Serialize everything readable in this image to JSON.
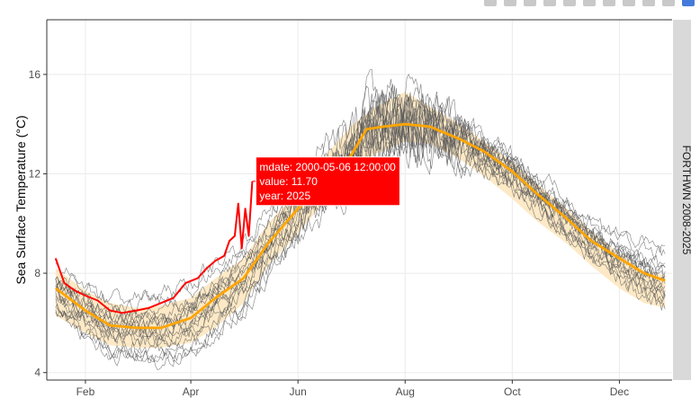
{
  "toolbar": {
    "icons": [
      "camera-icon",
      "zoom-icon",
      "pan-icon",
      "zoom-in-icon",
      "zoom-out-icon",
      "autoscale-icon",
      "reset-axes-icon",
      "spike-lines-icon",
      "hover-closest-icon",
      "hover-compare-icon",
      "plotly-logo-icon"
    ],
    "colors": {
      "icon": "#c9c9c9",
      "logo": "#447adb"
    }
  },
  "chart_data": {
    "type": "line",
    "ylabel": "Sea Surface Temperature (°C)",
    "facet_label": "FORTHWN 2008-2025",
    "x_ticks": [
      "Feb",
      "Apr",
      "Jun",
      "Aug",
      "Oct",
      "Dec"
    ],
    "x_tick_dates": [
      "2000-02-01",
      "2000-04-01",
      "2000-06-01",
      "2000-08-01",
      "2000-10-01",
      "2000-12-01"
    ],
    "xlim": [
      "2000-01-10",
      "2000-12-31"
    ],
    "y_ticks": [
      4,
      8,
      12,
      16
    ],
    "ylim": [
      3.7,
      18.2
    ],
    "grid": true,
    "colors": {
      "panel_background": "#ffffff",
      "grid": "#ebebeb",
      "history_lines": "#555555",
      "band": "#fde7c0",
      "mean_line": "#ffa500",
      "current_year": "#ff0000",
      "strip": "#d9d9d9",
      "tooltip_bg": "#ff0000"
    },
    "band": {
      "x": [
        "2000-01-15",
        "2000-02-01",
        "2000-02-15",
        "2000-03-01",
        "2000-03-15",
        "2000-04-01",
        "2000-04-15",
        "2000-05-01",
        "2000-05-15",
        "2000-06-01",
        "2000-06-15",
        "2000-07-01",
        "2000-07-15",
        "2000-08-01",
        "2000-08-15",
        "2000-09-01",
        "2000-09-15",
        "2000-10-01",
        "2000-10-15",
        "2000-11-01",
        "2000-11-15",
        "2000-12-01",
        "2000-12-15",
        "2000-12-27"
      ],
      "lower": [
        6.3,
        5.6,
        5.1,
        5.0,
        5.0,
        5.2,
        5.8,
        6.8,
        8.3,
        9.6,
        10.8,
        11.8,
        12.8,
        13.3,
        13.2,
        12.6,
        11.9,
        11.0,
        10.1,
        9.2,
        8.3,
        7.4,
        6.8,
        6.6
      ],
      "upper": [
        8.2,
        7.3,
        6.8,
        6.6,
        6.7,
        7.0,
        7.8,
        8.6,
        10.0,
        11.3,
        12.6,
        13.9,
        14.7,
        15.3,
        14.7,
        14.0,
        13.3,
        12.5,
        11.6,
        10.6,
        9.7,
        8.8,
        8.1,
        7.9
      ]
    },
    "series": [
      {
        "name": "mean",
        "x": [
          "2000-01-15",
          "2000-02-01",
          "2000-02-15",
          "2000-03-01",
          "2000-03-15",
          "2000-04-01",
          "2000-04-15",
          "2000-05-01",
          "2000-05-15",
          "2000-06-01",
          "2000-06-15",
          "2000-07-01",
          "2000-07-10",
          "2000-07-20",
          "2000-08-01",
          "2000-08-15",
          "2000-09-01",
          "2000-09-15",
          "2000-10-01",
          "2000-10-15",
          "2000-11-01",
          "2000-11-15",
          "2000-12-01",
          "2000-12-15",
          "2000-12-27"
        ],
        "y": [
          7.4,
          6.5,
          5.9,
          5.8,
          5.8,
          6.2,
          7.0,
          7.8,
          9.2,
          10.6,
          11.7,
          12.7,
          13.8,
          13.9,
          14.0,
          13.9,
          13.4,
          12.9,
          12.1,
          11.2,
          10.2,
          9.3,
          8.6,
          8.0,
          7.7
        ]
      },
      {
        "name": "2025",
        "x": [
          "2000-01-15",
          "2000-01-20",
          "2000-01-26",
          "2000-02-01",
          "2000-02-08",
          "2000-02-15",
          "2000-02-22",
          "2000-03-01",
          "2000-03-08",
          "2000-03-15",
          "2000-03-22",
          "2000-03-29",
          "2000-04-05",
          "2000-04-10",
          "2000-04-15",
          "2000-04-20",
          "2000-04-23",
          "2000-04-26",
          "2000-04-28",
          "2000-04-30",
          "2000-05-02",
          "2000-05-04",
          "2000-05-06"
        ],
        "y": [
          8.6,
          7.6,
          7.3,
          7.1,
          6.9,
          6.5,
          6.4,
          6.5,
          6.6,
          6.8,
          7.0,
          7.6,
          7.8,
          8.2,
          8.5,
          8.7,
          9.3,
          9.5,
          10.8,
          9.0,
          10.6,
          9.5,
          11.7
        ]
      }
    ],
    "history_line_count": 17,
    "tooltip": {
      "lines": [
        "mdate: 2000-05-06 12:00:00",
        "value: 11.70",
        "year: 2025"
      ]
    }
  }
}
